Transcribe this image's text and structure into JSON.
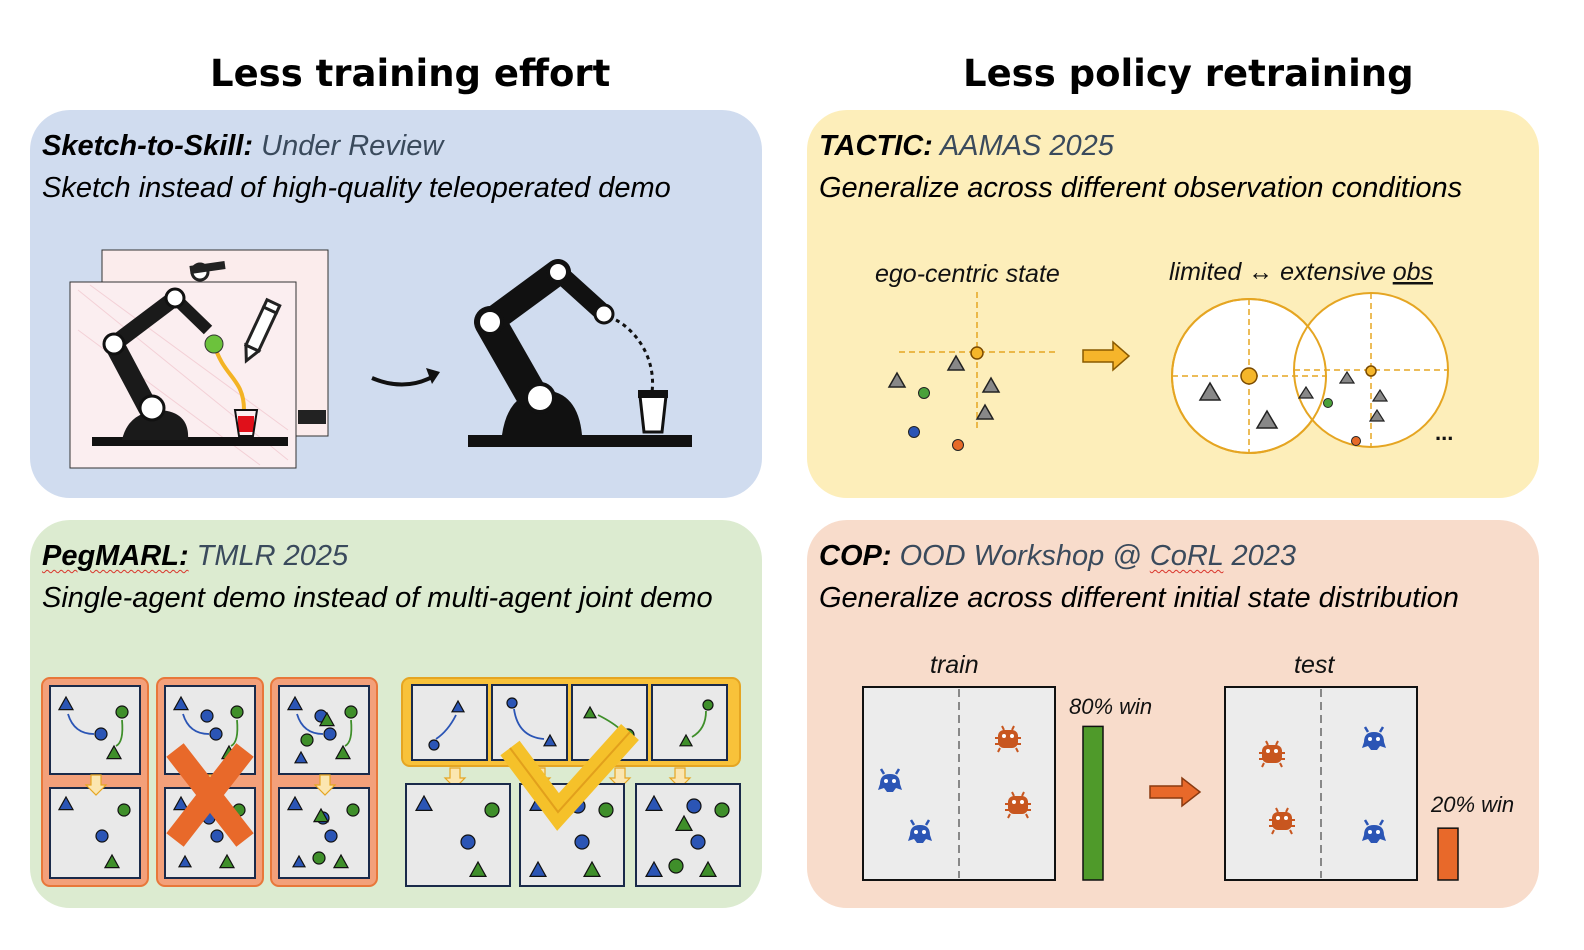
{
  "headings": {
    "left": "Less training effort",
    "right": "Less policy retraining"
  },
  "panels": {
    "sketch": {
      "name": "Sketch-to-Skill:",
      "venue": "Under Review",
      "description": "Sketch instead of high-quality teleoperated demo"
    },
    "tactic": {
      "name": "TACTIC:",
      "venue": "AAMAS 2025",
      "description": "Generalize across different observation conditions",
      "label_left": "ego-centric state",
      "label_right_a": "limited ↔ extensive ",
      "label_right_b": "obs",
      "ellipsis": "..."
    },
    "peg": {
      "name": "PegMARL:",
      "venue": "TMLR 2025",
      "description": "Single-agent demo instead of multi-agent joint demo"
    },
    "cop": {
      "name": "COP:",
      "venue_a": "OOD Workshop @ ",
      "venue_b": "CoRL",
      "venue_c": " 2023",
      "description": "Generalize across different initial state distribution",
      "train_label": "train",
      "test_label": "test",
      "train_win": "80% win",
      "test_win": "20% win",
      "train_win_value": 0.8,
      "test_win_value": 0.2
    }
  },
  "colors": {
    "blue_panel": "#d0dcef",
    "yellow_panel": "#fdeeba",
    "green_panel": "#dcebd0",
    "orange_panel": "#f8dccb",
    "agent_blue": "#2b55b5",
    "agent_green": "#3f8f2a",
    "highlight_orange": "#e8773a",
    "highlight_yellow": "#f8c23a"
  }
}
